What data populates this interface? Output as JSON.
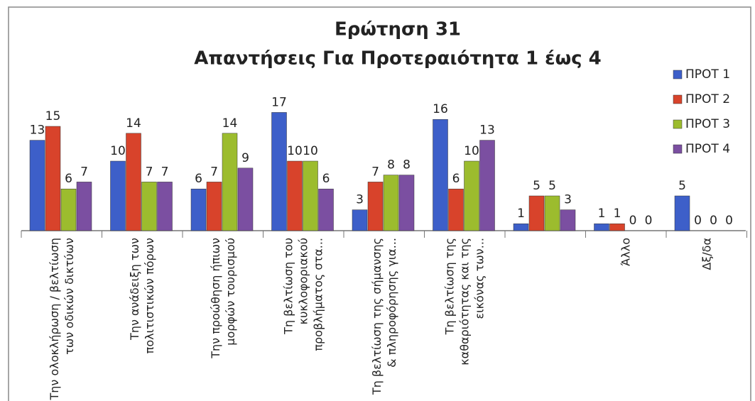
{
  "chart_data": {
    "type": "bar",
    "title": "Ερώτηση 31",
    "subtitle": "Απαντήσεις Για Προτεραιότητα 1 έως 4",
    "categories": [
      "Την ολοκλήρωση / βελτίωση των οδικών δικτύων",
      "Την ανάδειξη των πολιτιστικών πόρων",
      "Την προώθηση ήπιων μορφών τουρισμού",
      "Τη βελτίωση του κυκλοφοριακού προβλήματος στα...",
      "Τη βελτίωση της σήμανσης & πληροφόρησης για...",
      "Τη βελτίωση της καθαριότητας και της εικόνας των...",
      null,
      "Άλλο",
      "Δξ/δα"
    ],
    "series": [
      {
        "name": "ΠΡΟΤ 1",
        "color": "#3d5fc9",
        "values": [
          13,
          10,
          6,
          17,
          3,
          16,
          1,
          1,
          5
        ]
      },
      {
        "name": "ΠΡΟΤ 2",
        "color": "#d8432b",
        "values": [
          15,
          14,
          7,
          10,
          7,
          6,
          5,
          1,
          0
        ]
      },
      {
        "name": "ΠΡΟΤ 3",
        "color": "#9cbc2e",
        "values": [
          6,
          7,
          14,
          10,
          8,
          10,
          5,
          0,
          0
        ]
      },
      {
        "name": "ΠΡΟΤ 4",
        "color": "#7b4fa1",
        "values": [
          7,
          7,
          9,
          6,
          8,
          13,
          3,
          0,
          0
        ]
      }
    ],
    "legend": "right"
  }
}
